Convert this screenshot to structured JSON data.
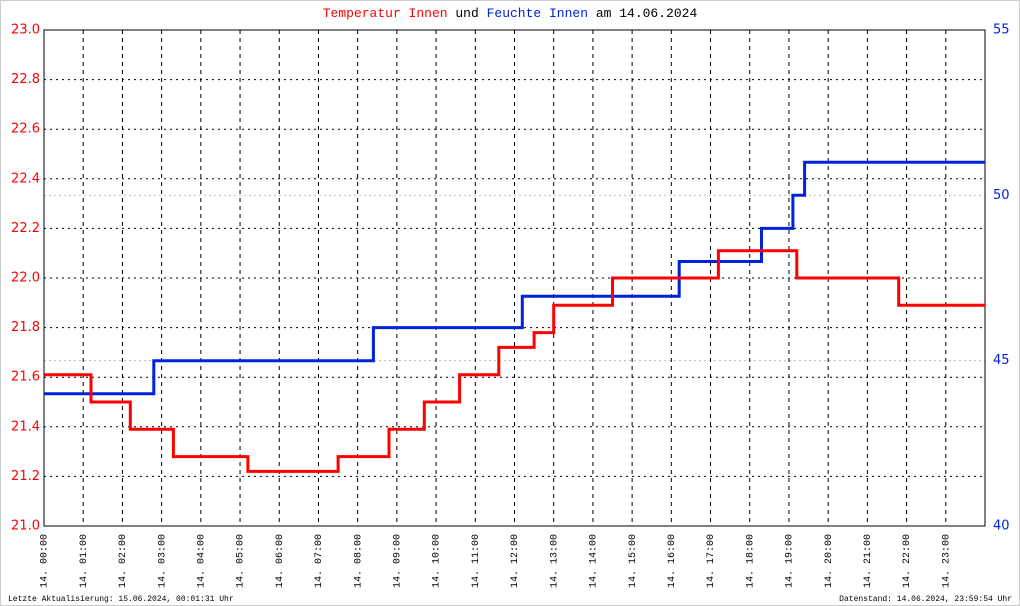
{
  "chart_data": {
    "type": "line",
    "title_parts": [
      "und",
      "am 14.06.2024"
    ],
    "footer_left": "Letzte Aktualisierung: 15.06.2024, 00:01:31 Uhr",
    "footer_right": "Datenstand: 14.06.2024, 23:59:54 Uhr",
    "xlim": [
      0,
      24
    ],
    "xticks": [
      {
        "value": 0,
        "label": "14. 00:00"
      },
      {
        "value": 1,
        "label": "14. 01:00"
      },
      {
        "value": 2,
        "label": "14. 02:00"
      },
      {
        "value": 3,
        "label": "14. 03:00"
      },
      {
        "value": 4,
        "label": "14. 04:00"
      },
      {
        "value": 5,
        "label": "14. 05:00"
      },
      {
        "value": 6,
        "label": "14. 06:00"
      },
      {
        "value": 7,
        "label": "14. 07:00"
      },
      {
        "value": 8,
        "label": "14. 08:00"
      },
      {
        "value": 9,
        "label": "14. 09:00"
      },
      {
        "value": 10,
        "label": "14. 10:00"
      },
      {
        "value": 11,
        "label": "14. 11:00"
      },
      {
        "value": 12,
        "label": "14. 12:00"
      },
      {
        "value": 13,
        "label": "14. 13:00"
      },
      {
        "value": 14,
        "label": "14. 14:00"
      },
      {
        "value": 15,
        "label": "14. 15:00"
      },
      {
        "value": 16,
        "label": "14. 16:00"
      },
      {
        "value": 17,
        "label": "14. 17:00"
      },
      {
        "value": 18,
        "label": "14. 18:00"
      },
      {
        "value": 19,
        "label": "14. 19:00"
      },
      {
        "value": 20,
        "label": "14. 20:00"
      },
      {
        "value": 21,
        "label": "14. 21:00"
      },
      {
        "value": 22,
        "label": "14. 22:00"
      },
      {
        "value": 23,
        "label": "14. 23:00"
      }
    ],
    "ylim": [
      21.0,
      23.0
    ],
    "yticks": [
      {
        "value": 21.0,
        "label": "21.0"
      },
      21.2,
      21.4,
      21.6,
      21.8,
      {
        "value": 22.0,
        "label": "22.0"
      },
      22.2,
      22.4,
      22.6,
      22.8,
      {
        "value": 23.0,
        "label": "23.0"
      }
    ],
    "y2lim": [
      40,
      55
    ],
    "y2ticks": [
      40,
      45,
      50,
      55
    ],
    "grid": true,
    "y2grid": true,
    "series": [
      {
        "name": "Temperatur Innen",
        "color": "#ff0000",
        "x": [
          0,
          1.2,
          1.2,
          2.2,
          2.2,
          3.3,
          3.3,
          5.2,
          5.2,
          7.5,
          7.5,
          8.8,
          8.8,
          9.7,
          9.7,
          10.6,
          10.6,
          11.6,
          11.6,
          12.5,
          12.5,
          13.0,
          13.0,
          14.5,
          14.5,
          17.2,
          17.2,
          19.2,
          19.2,
          21.8,
          21.8,
          24
        ],
        "values": [
          21.61,
          21.61,
          21.5,
          21.5,
          21.39,
          21.39,
          21.28,
          21.28,
          21.22,
          21.22,
          21.28,
          21.28,
          21.39,
          21.39,
          21.5,
          21.5,
          21.61,
          21.61,
          21.72,
          21.72,
          21.78,
          21.78,
          21.89,
          21.89,
          22.0,
          22.0,
          22.11,
          22.11,
          22.0,
          22.0,
          21.89,
          21.89
        ]
      },
      {
        "name": "Feuchte Innen",
        "color": "#0022dd",
        "axis": "y2",
        "x": [
          0,
          2.8,
          2.8,
          8.4,
          8.4,
          12.2,
          12.2,
          16.2,
          16.2,
          18.3,
          18.3,
          19.1,
          19.1,
          19.4,
          19.4,
          24
        ],
        "values": [
          44.0,
          44.0,
          45.0,
          45.0,
          46.0,
          46.0,
          46.95,
          46.95,
          48.0,
          48.0,
          49.0,
          49.0,
          50.0,
          50.0,
          51.0,
          51.0
        ]
      }
    ]
  }
}
